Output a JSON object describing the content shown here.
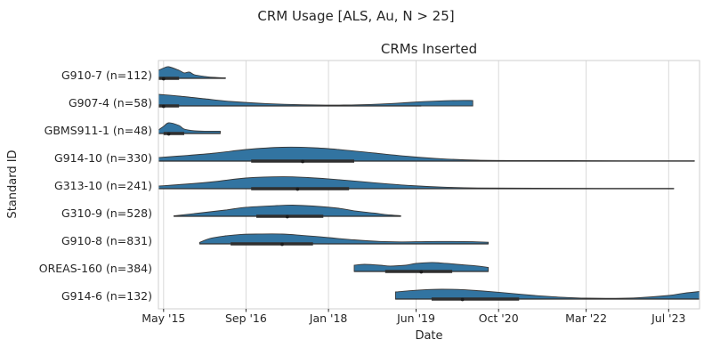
{
  "figure": {
    "title": "CRM Usage [ALS, Au, N > 25]"
  },
  "chart_data": {
    "type": "violin",
    "title": "CRMs Inserted",
    "xlabel": "Date",
    "ylabel": "Standard ID",
    "grid": true,
    "legend": "none",
    "colors": {
      "violin_fill": "#3274a1",
      "violin_edge": "#3a3a3a",
      "inner_line": "#2f2f2f",
      "grid": "#d9d9d9",
      "spine": "#cfcfcf",
      "text": "#262626"
    },
    "x_axis": {
      "range": [
        "2015-04",
        "2024-01"
      ],
      "ticks": [
        {
          "label": "May '15",
          "date": "2015-05"
        },
        {
          "label": "Sep '16",
          "date": "2016-09"
        },
        {
          "label": "Jan '18",
          "date": "2018-01"
        },
        {
          "label": "Jun '19",
          "date": "2019-06"
        },
        {
          "label": "Oct '20",
          "date": "2020-10"
        },
        {
          "label": "Mar '22",
          "date": "2022-03"
        },
        {
          "label": "Jul '23",
          "date": "2023-07"
        }
      ]
    },
    "series": [
      {
        "id": "G910-7",
        "n": 112,
        "label": "G910-7 (n=112)",
        "whisker": [
          "2015-04",
          "2016-05"
        ],
        "box": [
          "2015-04",
          "2015-08"
        ],
        "median": "2015-05",
        "profile": [
          [
            "2015-04",
            0.56
          ],
          [
            "2015-05",
            0.72
          ],
          [
            "2015-06",
            0.81
          ],
          [
            "2015-08",
            0.56
          ],
          [
            "2015-09",
            0.38
          ],
          [
            "2015-10",
            0.44
          ],
          [
            "2015-11",
            0.25
          ],
          [
            "2016-01",
            0.13
          ],
          [
            "2016-03",
            0.06
          ],
          [
            "2016-05",
            0.03
          ]
        ]
      },
      {
        "id": "G907-4",
        "n": 58,
        "label": "G907-4 (n=58)",
        "whisker": [
          "2015-04",
          "2019-07"
        ],
        "box": [
          "2015-04",
          "2015-08"
        ],
        "median": "2015-05",
        "profile": [
          [
            "2015-04",
            0.81
          ],
          [
            "2015-08",
            0.69
          ],
          [
            "2016-01",
            0.5
          ],
          [
            "2016-06",
            0.31
          ],
          [
            "2017-01",
            0.16
          ],
          [
            "2017-08",
            0.08
          ],
          [
            "2018-04",
            0.06
          ],
          [
            "2018-11",
            0.13
          ],
          [
            "2019-05",
            0.25
          ],
          [
            "2019-10",
            0.34
          ],
          [
            "2020-02",
            0.38
          ],
          [
            "2020-05",
            0.38
          ]
        ]
      },
      {
        "id": "GBMS911-1",
        "n": 48,
        "label": "GBMS911-1 (n=48)",
        "whisker": [
          "2015-04",
          "2016-04"
        ],
        "box": [
          "2015-05",
          "2015-09"
        ],
        "median": "2015-06",
        "profile": [
          [
            "2015-04",
            0.25
          ],
          [
            "2015-05",
            0.5
          ],
          [
            "2015-06",
            0.75
          ],
          [
            "2015-08",
            0.56
          ],
          [
            "2015-09",
            0.31
          ],
          [
            "2015-11",
            0.19
          ],
          [
            "2016-01",
            0.16
          ],
          [
            "2016-04",
            0.16
          ]
        ]
      },
      {
        "id": "G914-10",
        "n": 330,
        "label": "G914-10 (n=330)",
        "whisker": [
          "2015-04",
          "2023-12"
        ],
        "box": [
          "2016-10",
          "2018-06"
        ],
        "median": "2017-08",
        "profile": [
          [
            "2015-04",
            0.25
          ],
          [
            "2015-09",
            0.38
          ],
          [
            "2016-03",
            0.56
          ],
          [
            "2016-09",
            0.81
          ],
          [
            "2017-04",
            0.97
          ],
          [
            "2017-10",
            0.94
          ],
          [
            "2018-03",
            0.81
          ],
          [
            "2018-10",
            0.56
          ],
          [
            "2019-05",
            0.31
          ],
          [
            "2019-11",
            0.16
          ],
          [
            "2020-06",
            0.06
          ],
          [
            "2021-01",
            0.04
          ],
          [
            "2021-12",
            0.03
          ],
          [
            "2022-10",
            0.02
          ],
          [
            "2023-12",
            0.02
          ]
        ]
      },
      {
        "id": "G313-10",
        "n": 241,
        "label": "G313-10 (n=241)",
        "whisker": [
          "2015-04",
          "2023-08"
        ],
        "box": [
          "2016-10",
          "2018-05"
        ],
        "median": "2017-07",
        "profile": [
          [
            "2015-04",
            0.19
          ],
          [
            "2015-09",
            0.31
          ],
          [
            "2016-03",
            0.5
          ],
          [
            "2016-09",
            0.75
          ],
          [
            "2017-04",
            0.84
          ],
          [
            "2017-09",
            0.78
          ],
          [
            "2018-03",
            0.63
          ],
          [
            "2018-10",
            0.41
          ],
          [
            "2019-05",
            0.22
          ],
          [
            "2019-11",
            0.11
          ],
          [
            "2020-06",
            0.05
          ],
          [
            "2021-05",
            0.03
          ],
          [
            "2022-06",
            0.02
          ],
          [
            "2023-08",
            0.02
          ]
        ]
      },
      {
        "id": "G310-9",
        "n": 528,
        "label": "G310-9 (n=528)",
        "whisker": [
          "2015-07",
          "2019-03"
        ],
        "box": [
          "2016-11",
          "2017-12"
        ],
        "median": "2017-05",
        "profile": [
          [
            "2015-07",
            0.03
          ],
          [
            "2015-11",
            0.19
          ],
          [
            "2016-05",
            0.44
          ],
          [
            "2016-09",
            0.63
          ],
          [
            "2017-03",
            0.75
          ],
          [
            "2017-06",
            0.78
          ],
          [
            "2017-10",
            0.72
          ],
          [
            "2018-03",
            0.56
          ],
          [
            "2018-06",
            0.38
          ],
          [
            "2018-10",
            0.22
          ],
          [
            "2018-12",
            0.12
          ],
          [
            "2019-03",
            0.04
          ]
        ]
      },
      {
        "id": "G910-8",
        "n": 831,
        "label": "G910-8 (n=831)",
        "whisker": [
          "2015-12",
          "2020-08"
        ],
        "box": [
          "2016-06",
          "2017-10"
        ],
        "median": "2017-04",
        "profile": [
          [
            "2015-12",
            0.1
          ],
          [
            "2016-02",
            0.38
          ],
          [
            "2016-05",
            0.56
          ],
          [
            "2016-08",
            0.66
          ],
          [
            "2016-11",
            0.69
          ],
          [
            "2017-04",
            0.69
          ],
          [
            "2017-08",
            0.59
          ],
          [
            "2018-01",
            0.44
          ],
          [
            "2018-06",
            0.28
          ],
          [
            "2018-11",
            0.17
          ],
          [
            "2019-03",
            0.14
          ],
          [
            "2019-08",
            0.16
          ],
          [
            "2020-01",
            0.17
          ],
          [
            "2020-05",
            0.15
          ],
          [
            "2020-08",
            0.11
          ]
        ]
      },
      {
        "id": "OREAS-160",
        "n": 384,
        "label": "OREAS-160 (n=384)",
        "whisker": [
          "2018-06",
          "2020-08"
        ],
        "box": [
          "2018-12",
          "2020-01"
        ],
        "median": "2019-07",
        "profile": [
          [
            "2018-06",
            0.44
          ],
          [
            "2018-08",
            0.5
          ],
          [
            "2018-11",
            0.44
          ],
          [
            "2019-01",
            0.38
          ],
          [
            "2019-04",
            0.44
          ],
          [
            "2019-06",
            0.56
          ],
          [
            "2019-09",
            0.63
          ],
          [
            "2019-11",
            0.59
          ],
          [
            "2020-03",
            0.47
          ],
          [
            "2020-06",
            0.38
          ],
          [
            "2020-08",
            0.28
          ]
        ]
      },
      {
        "id": "G914-6",
        "n": 132,
        "label": "G914-6 (n=132)",
        "whisker": [
          "2019-02",
          "2024-01"
        ],
        "box": [
          "2019-09",
          "2021-02"
        ],
        "median": "2020-03",
        "profile": [
          [
            "2019-02",
            0.5
          ],
          [
            "2019-05",
            0.59
          ],
          [
            "2019-08",
            0.66
          ],
          [
            "2019-11",
            0.69
          ],
          [
            "2020-03",
            0.66
          ],
          [
            "2020-07",
            0.56
          ],
          [
            "2020-12",
            0.41
          ],
          [
            "2021-05",
            0.25
          ],
          [
            "2021-10",
            0.13
          ],
          [
            "2022-03",
            0.06
          ],
          [
            "2022-08",
            0.05
          ],
          [
            "2023-01",
            0.09
          ],
          [
            "2023-07",
            0.25
          ],
          [
            "2023-10",
            0.41
          ],
          [
            "2024-01",
            0.53
          ]
        ]
      }
    ]
  }
}
